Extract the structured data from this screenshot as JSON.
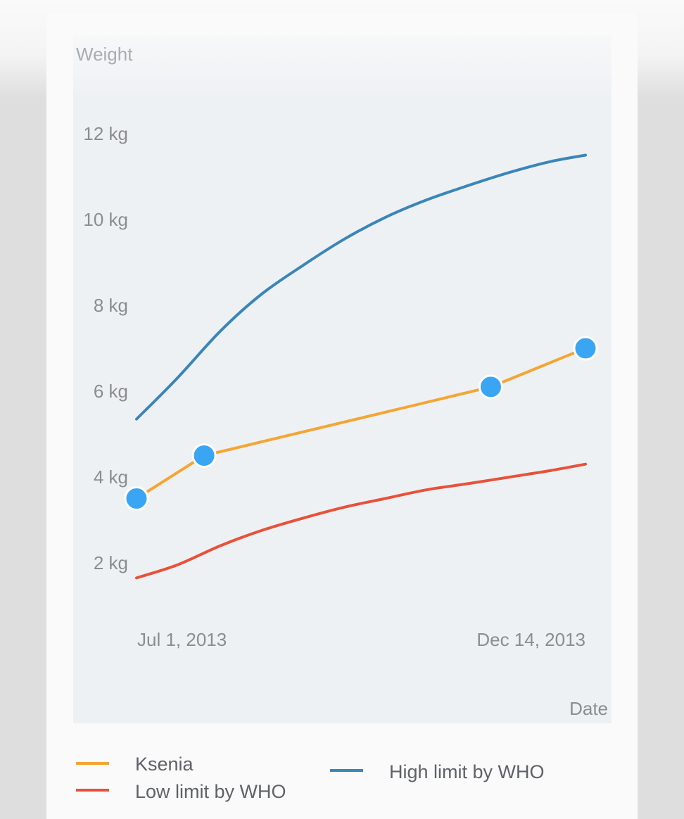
{
  "chart_data": {
    "type": "line",
    "ylabel": "Weight",
    "xlabel": "Date",
    "x_ticks": [
      "Jul 1, 2013",
      "Dec 14, 2013"
    ],
    "y_ticks": [
      "2 kg",
      "4 kg",
      "6 kg",
      "8 kg",
      "10 kg",
      "12 kg"
    ],
    "y_tick_values": [
      2,
      4,
      6,
      8,
      10,
      12
    ],
    "ylim": [
      0,
      14
    ],
    "xlim": [
      "2013-06-30",
      "2013-12-16"
    ],
    "grid": false,
    "legend_position": "bottom",
    "series": [
      {
        "name": "Ksenia",
        "color": "#f4a534",
        "marker_color": "#3aa6f3",
        "markers": true,
        "x": [
          "2013-07-01",
          "2013-07-26",
          "2013-11-09",
          "2013-12-14"
        ],
        "y": [
          3.5,
          4.5,
          6.1,
          7.0
        ]
      },
      {
        "name": "Low limit by WHO",
        "color": "#e8513a",
        "markers": false,
        "x": [
          "2013-07-01",
          "2013-07-16",
          "2013-08-01",
          "2013-08-16",
          "2013-09-01",
          "2013-09-16",
          "2013-10-01",
          "2013-10-16",
          "2013-11-01",
          "2013-11-16",
          "2013-12-01",
          "2013-12-14"
        ],
        "y": [
          1.65,
          1.95,
          2.4,
          2.75,
          3.05,
          3.3,
          3.5,
          3.7,
          3.85,
          4.0,
          4.15,
          4.3
        ]
      },
      {
        "name": "High limit by WHO",
        "color": "#3b86b8",
        "markers": false,
        "x": [
          "2013-07-01",
          "2013-07-16",
          "2013-08-01",
          "2013-08-16",
          "2013-09-01",
          "2013-09-16",
          "2013-10-01",
          "2013-10-16",
          "2013-11-01",
          "2013-11-16",
          "2013-12-01",
          "2013-12-14"
        ],
        "y": [
          5.35,
          6.3,
          7.4,
          8.25,
          8.95,
          9.55,
          10.05,
          10.45,
          10.8,
          11.1,
          11.35,
          11.5
        ]
      }
    ]
  }
}
